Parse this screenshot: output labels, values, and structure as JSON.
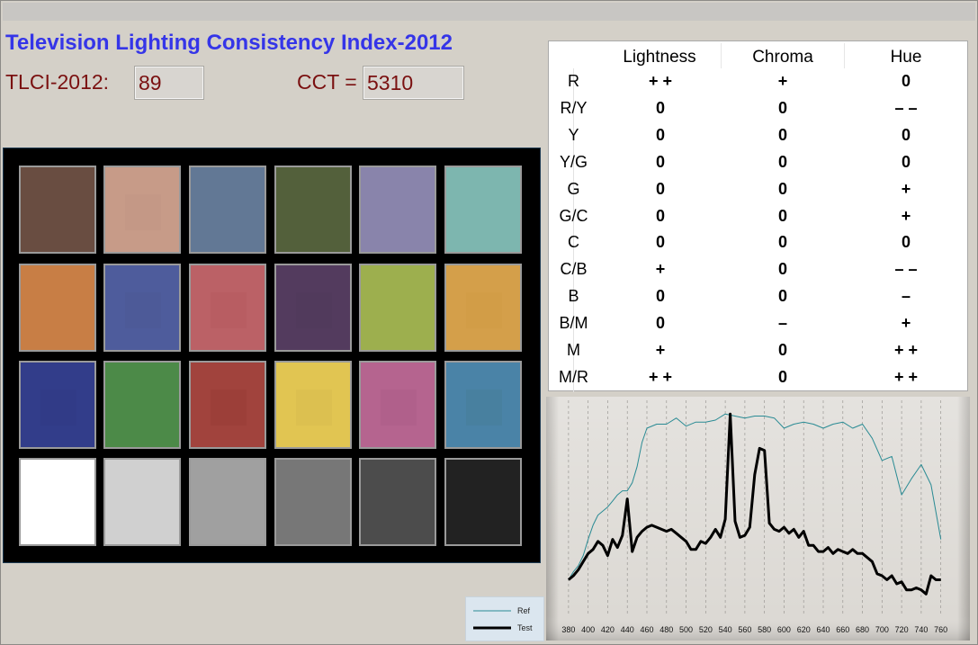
{
  "title": "Television Lighting Consistency Index-2012",
  "tlci": {
    "label": "TLCI-2012:",
    "value": "89"
  },
  "cct": {
    "label": "CCT =",
    "value": "5310"
  },
  "checker": {
    "patches": [
      [
        "#694d41",
        "#c79b88",
        "#627895",
        "#53603b",
        "#8984ab",
        "#7db6af"
      ],
      [
        "#c87e45",
        "#4e5c9c",
        "#bb6166",
        "#533b5e",
        "#9daf4e",
        "#d49f4a"
      ],
      [
        "#323d8a",
        "#4c8a48",
        "#a1433d",
        "#e1c552",
        "#b5648f",
        "#4a83a7"
      ],
      [
        "#ffffff",
        "#d0d0d0",
        "#a0a0a0",
        "#777777",
        "#4c4c4c",
        "#222222"
      ]
    ],
    "inner": [
      [
        "#694d41",
        "#c49886",
        "#627895",
        "#53603b",
        "#8984ab",
        "#7db6af"
      ],
      [
        "#c87e45",
        "#4d5a98",
        "#b85d62",
        "#513a5c",
        "#9daf4e",
        "#d29d47"
      ],
      [
        "#313b87",
        "#4c8a48",
        "#9c3f39",
        "#dcc050",
        "#b0608b",
        "#48809f"
      ],
      [
        "#ffffff",
        "#d0d0d0",
        "#a0a0a0",
        "#777777",
        "#4c4c4c",
        "#222222"
      ]
    ]
  },
  "table": {
    "headers": [
      "Lightness",
      "Chroma",
      "Hue"
    ],
    "rows": [
      {
        "label": "R",
        "l": "+ +",
        "c": "+",
        "h": "0"
      },
      {
        "label": "R/Y",
        "l": "0",
        "c": "0",
        "h": "– –"
      },
      {
        "label": "Y",
        "l": "0",
        "c": "0",
        "h": "0"
      },
      {
        "label": "Y/G",
        "l": "0",
        "c": "0",
        "h": "0"
      },
      {
        "label": "G",
        "l": "0",
        "c": "0",
        "h": "+"
      },
      {
        "label": "G/C",
        "l": "0",
        "c": "0",
        "h": "+"
      },
      {
        "label": "C",
        "l": "0",
        "c": "0",
        "h": "0"
      },
      {
        "label": "C/B",
        "l": "+",
        "c": "0",
        "h": "– –"
      },
      {
        "label": "B",
        "l": "0",
        "c": "0",
        "h": "–"
      },
      {
        "label": "B/M",
        "l": "0",
        "c": "–",
        "h": "+"
      },
      {
        "label": "M",
        "l": "+",
        "c": "0",
        "h": "+ +"
      },
      {
        "label": "M/R",
        "l": "+ +",
        "c": "0",
        "h": "+ +"
      }
    ]
  },
  "chart_data": {
    "type": "line",
    "x_ticks": [
      "380",
      "400",
      "420",
      "440",
      "460",
      "480",
      "500",
      "520",
      "540",
      "560",
      "580",
      "600",
      "620",
      "640",
      "660",
      "680",
      "700",
      "720",
      "740",
      "760"
    ],
    "xlim": [
      370,
      775
    ],
    "ylim": [
      0,
      1.05
    ],
    "grid": "vertical-dashed",
    "legend": {
      "entries": [
        "Ref",
        "Test"
      ],
      "placement": "bottom-left-outside"
    },
    "series": [
      {
        "name": "Ref",
        "color": "#2a8b94",
        "x": [
          380,
          385,
          390,
          395,
          400,
          405,
          410,
          415,
          420,
          425,
          430,
          435,
          440,
          445,
          450,
          455,
          460,
          470,
          480,
          490,
          500,
          510,
          520,
          530,
          540,
          550,
          560,
          570,
          580,
          590,
          600,
          610,
          620,
          630,
          640,
          650,
          660,
          670,
          680,
          690,
          700,
          710,
          720,
          730,
          740,
          750,
          760
        ],
        "y": [
          0.18,
          0.22,
          0.25,
          0.3,
          0.38,
          0.45,
          0.5,
          0.52,
          0.54,
          0.57,
          0.6,
          0.62,
          0.62,
          0.66,
          0.74,
          0.86,
          0.93,
          0.95,
          0.95,
          0.98,
          0.94,
          0.96,
          0.96,
          0.97,
          1.0,
          0.99,
          0.98,
          0.99,
          0.99,
          0.98,
          0.93,
          0.95,
          0.96,
          0.95,
          0.93,
          0.95,
          0.96,
          0.93,
          0.95,
          0.88,
          0.77,
          0.79,
          0.6,
          0.68,
          0.75,
          0.65,
          0.38
        ]
      },
      {
        "name": "Test",
        "color": "#000000",
        "x": [
          380,
          385,
          390,
          395,
          400,
          405,
          410,
          415,
          420,
          425,
          430,
          435,
          440,
          445,
          450,
          455,
          460,
          465,
          470,
          475,
          480,
          485,
          490,
          495,
          500,
          505,
          510,
          515,
          520,
          525,
          530,
          535,
          540,
          545,
          550,
          555,
          560,
          565,
          570,
          575,
          580,
          585,
          590,
          595,
          600,
          605,
          610,
          615,
          620,
          625,
          630,
          635,
          640,
          645,
          650,
          655,
          660,
          665,
          670,
          675,
          680,
          685,
          690,
          695,
          700,
          705,
          710,
          715,
          720,
          725,
          730,
          735,
          740,
          745,
          750,
          755,
          760
        ],
        "y": [
          0.18,
          0.2,
          0.23,
          0.27,
          0.31,
          0.33,
          0.37,
          0.35,
          0.3,
          0.38,
          0.34,
          0.4,
          0.58,
          0.32,
          0.39,
          0.42,
          0.44,
          0.45,
          0.44,
          0.43,
          0.42,
          0.43,
          0.41,
          0.39,
          0.37,
          0.33,
          0.33,
          0.37,
          0.36,
          0.39,
          0.43,
          0.39,
          0.48,
          1.0,
          0.47,
          0.39,
          0.4,
          0.44,
          0.7,
          0.83,
          0.82,
          0.46,
          0.43,
          0.42,
          0.44,
          0.41,
          0.43,
          0.39,
          0.42,
          0.35,
          0.35,
          0.32,
          0.32,
          0.34,
          0.31,
          0.33,
          0.32,
          0.31,
          0.33,
          0.31,
          0.31,
          0.29,
          0.27,
          0.21,
          0.2,
          0.18,
          0.2,
          0.16,
          0.17,
          0.13,
          0.13,
          0.14,
          0.13,
          0.11,
          0.2,
          0.18,
          0.18
        ]
      }
    ]
  }
}
